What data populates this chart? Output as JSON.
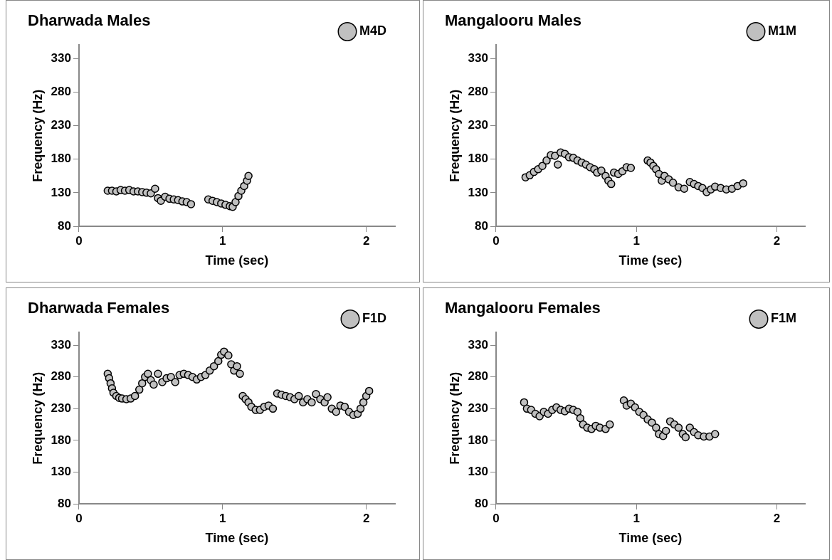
{
  "chart_data": [
    {
      "type": "scatter",
      "title": "Dharwada Males",
      "xlabel": "Time (sec)",
      "ylabel": "Frequency (Hz)",
      "xlim": [
        0,
        2.2
      ],
      "xticks": [
        0,
        1,
        2
      ],
      "ylim": [
        80,
        350
      ],
      "yticks": [
        80,
        130,
        180,
        230,
        280,
        330
      ],
      "grid": false,
      "legend": "top right",
      "marker": "circle",
      "series": [
        {
          "name": "M4D",
          "color": "#c0c0c0",
          "x": [
            0.2,
            0.23,
            0.26,
            0.29,
            0.32,
            0.35,
            0.38,
            0.41,
            0.44,
            0.47,
            0.5,
            0.53,
            0.55,
            0.57,
            0.6,
            0.63,
            0.66,
            0.69,
            0.72,
            0.75,
            0.78,
            0.9,
            0.93,
            0.96,
            0.99,
            1.02,
            1.05,
            1.07,
            1.09,
            1.11,
            1.13,
            1.15,
            1.17,
            1.18
          ],
          "values": [
            133,
            133,
            132,
            134,
            133,
            134,
            132,
            132,
            131,
            130,
            129,
            136,
            122,
            118,
            124,
            121,
            120,
            119,
            117,
            116,
            113,
            120,
            118,
            116,
            114,
            112,
            110,
            109,
            116,
            125,
            133,
            140,
            148,
            155
          ]
        }
      ]
    },
    {
      "type": "scatter",
      "title": "Mangalooru Males",
      "xlabel": "Time (sec)",
      "ylabel": "Frequency (Hz)",
      "xlim": [
        0,
        2.2
      ],
      "xticks": [
        0,
        1,
        2
      ],
      "ylim": [
        80,
        350
      ],
      "yticks": [
        80,
        130,
        180,
        230,
        280,
        330
      ],
      "grid": false,
      "legend": "top right",
      "marker": "circle",
      "series": [
        {
          "name": "M1M",
          "color": "#c0c0c0",
          "x": [
            0.21,
            0.24,
            0.27,
            0.3,
            0.33,
            0.36,
            0.39,
            0.42,
            0.44,
            0.46,
            0.49,
            0.52,
            0.55,
            0.58,
            0.61,
            0.64,
            0.67,
            0.7,
            0.72,
            0.75,
            0.78,
            0.8,
            0.82,
            0.84,
            0.87,
            0.9,
            0.93,
            0.96,
            1.08,
            1.1,
            1.12,
            1.14,
            1.16,
            1.18,
            1.2,
            1.23,
            1.26,
            1.3,
            1.34,
            1.38,
            1.41,
            1.44,
            1.47,
            1.5,
            1.53,
            1.56,
            1.6,
            1.64,
            1.68,
            1.72,
            1.76
          ],
          "values": [
            153,
            156,
            161,
            165,
            170,
            178,
            186,
            185,
            172,
            190,
            188,
            183,
            182,
            178,
            175,
            172,
            168,
            165,
            160,
            163,
            155,
            148,
            143,
            160,
            158,
            162,
            168,
            167,
            178,
            175,
            170,
            165,
            158,
            148,
            155,
            150,
            145,
            138,
            136,
            146,
            143,
            140,
            137,
            131,
            135,
            139,
            137,
            135,
            136,
            140,
            144
          ]
        }
      ]
    },
    {
      "type": "scatter",
      "title": "Dharwada Females",
      "xlabel": "Time (sec)",
      "ylabel": "Frequency (Hz)",
      "xlim": [
        0,
        2.2
      ],
      "xticks": [
        0,
        1,
        2
      ],
      "ylim": [
        80,
        350
      ],
      "yticks": [
        80,
        130,
        180,
        230,
        280,
        330
      ],
      "grid": false,
      "legend": "top right",
      "marker": "circle",
      "series": [
        {
          "name": "F1D",
          "color": "#c0c0c0",
          "x": [
            0.2,
            0.21,
            0.22,
            0.23,
            0.24,
            0.26,
            0.28,
            0.3,
            0.33,
            0.36,
            0.39,
            0.42,
            0.44,
            0.46,
            0.48,
            0.5,
            0.52,
            0.55,
            0.58,
            0.61,
            0.64,
            0.67,
            0.7,
            0.73,
            0.76,
            0.79,
            0.82,
            0.85,
            0.88,
            0.91,
            0.94,
            0.97,
            0.99,
            1.01,
            1.04,
            1.06,
            1.08,
            1.1,
            1.12,
            1.14,
            1.16,
            1.18,
            1.2,
            1.23,
            1.26,
            1.29,
            1.32,
            1.35,
            1.38,
            1.41,
            1.44,
            1.47,
            1.5,
            1.53,
            1.56,
            1.59,
            1.62,
            1.65,
            1.68,
            1.71,
            1.73,
            1.76,
            1.79,
            1.82,
            1.85,
            1.88,
            1.91,
            1.94,
            1.96,
            1.98,
            2.0,
            2.02
          ],
          "values": [
            285,
            278,
            270,
            262,
            255,
            250,
            247,
            246,
            245,
            246,
            250,
            260,
            270,
            280,
            285,
            275,
            268,
            285,
            272,
            278,
            280,
            272,
            283,
            285,
            283,
            280,
            276,
            280,
            283,
            290,
            297,
            305,
            315,
            320,
            314,
            300,
            290,
            297,
            285,
            250,
            245,
            240,
            233,
            228,
            228,
            233,
            235,
            230,
            254,
            252,
            250,
            248,
            245,
            250,
            240,
            245,
            240,
            253,
            245,
            240,
            248,
            230,
            225,
            235,
            233,
            225,
            220,
            222,
            230,
            240,
            250,
            258
          ]
        }
      ]
    },
    {
      "type": "scatter",
      "title": "Mangalooru Females",
      "xlabel": "Time (sec)",
      "ylabel": "Frequency (Hz)",
      "xlim": [
        0,
        2.2
      ],
      "xticks": [
        0,
        1,
        2
      ],
      "ylim": [
        80,
        350
      ],
      "yticks": [
        80,
        130,
        180,
        230,
        280,
        330
      ],
      "grid": false,
      "legend": "top right",
      "marker": "circle",
      "series": [
        {
          "name": "F1M",
          "color": "#c0c0c0",
          "x": [
            0.2,
            0.22,
            0.25,
            0.28,
            0.31,
            0.34,
            0.37,
            0.4,
            0.43,
            0.46,
            0.49,
            0.52,
            0.55,
            0.58,
            0.6,
            0.62,
            0.65,
            0.68,
            0.71,
            0.74,
            0.78,
            0.81,
            0.91,
            0.93,
            0.96,
            0.99,
            1.02,
            1.05,
            1.08,
            1.11,
            1.14,
            1.16,
            1.19,
            1.21,
            1.24,
            1.27,
            1.3,
            1.33,
            1.35,
            1.38,
            1.41,
            1.44,
            1.48,
            1.52,
            1.56
          ],
          "values": [
            240,
            230,
            228,
            222,
            218,
            225,
            222,
            228,
            232,
            228,
            226,
            230,
            228,
            225,
            215,
            205,
            200,
            198,
            203,
            200,
            198,
            205,
            243,
            235,
            238,
            232,
            225,
            220,
            213,
            208,
            200,
            190,
            187,
            195,
            210,
            205,
            200,
            190,
            185,
            200,
            193,
            188,
            186,
            186,
            190
          ]
        }
      ]
    }
  ]
}
